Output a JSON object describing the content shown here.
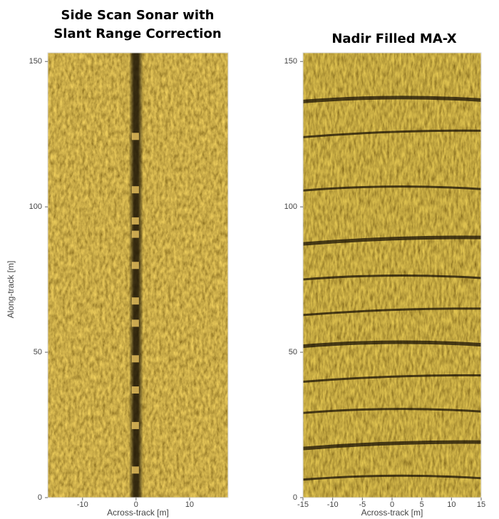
{
  "chart_data": [
    {
      "type": "image",
      "title": [
        "Side Scan Sonar with",
        "Slant Range Correction"
      ],
      "xlabel": "Across-track [m]",
      "ylabel": "Along-track [m]",
      "xlim": [
        -16.5,
        17.2
      ],
      "xticks": [
        -10,
        0,
        10
      ],
      "ylim": [
        0,
        153
      ],
      "yticks": [
        0,
        50,
        100,
        150
      ]
    },
    {
      "type": "image",
      "title": [
        "Nadir Filled MA-X"
      ],
      "xlabel": "Across-track [m]",
      "xlim": [
        -15,
        15
      ],
      "xticks": [
        -15,
        -10,
        -5,
        0,
        5,
        10,
        15
      ],
      "ylim": [
        0,
        153
      ],
      "yticks": [
        0,
        50,
        100,
        150
      ]
    }
  ]
}
